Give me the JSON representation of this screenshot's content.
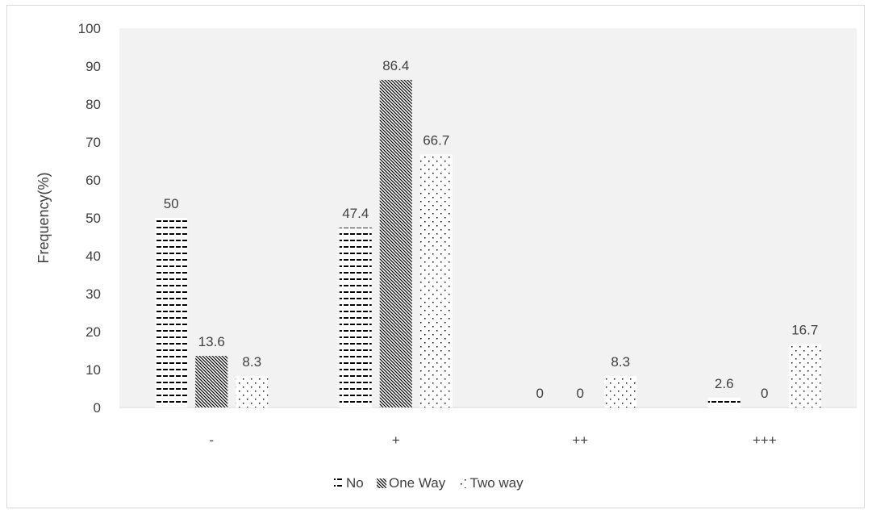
{
  "chart_data": {
    "type": "bar",
    "categories": [
      "-",
      "+",
      "++",
      "+++"
    ],
    "series": [
      {
        "name": "No",
        "values": [
          50,
          47.4,
          0,
          2.6
        ],
        "data_labels": [
          "50",
          "47.4",
          "0",
          "2.6"
        ],
        "pattern": "dashes"
      },
      {
        "name": "One Way",
        "values": [
          13.6,
          86.4,
          0,
          0
        ],
        "data_labels": [
          "13.6",
          "86.4",
          "0",
          "0"
        ],
        "pattern": "diagonal-hatch"
      },
      {
        "name": "Two way",
        "values": [
          8.3,
          66.7,
          8.3,
          16.7
        ],
        "data_labels": [
          "8.3",
          "66.7",
          "8.3",
          "16.7"
        ],
        "pattern": "dots"
      }
    ],
    "ylabel": "Frequency(%)",
    "ylim": [
      0,
      100
    ],
    "yticks": [
      "0",
      "10",
      "20",
      "30",
      "40",
      "50",
      "60",
      "70",
      "80",
      "90",
      "100"
    ],
    "plot_background": "#f2f2f2",
    "grid": false,
    "legend_position": "bottom"
  }
}
